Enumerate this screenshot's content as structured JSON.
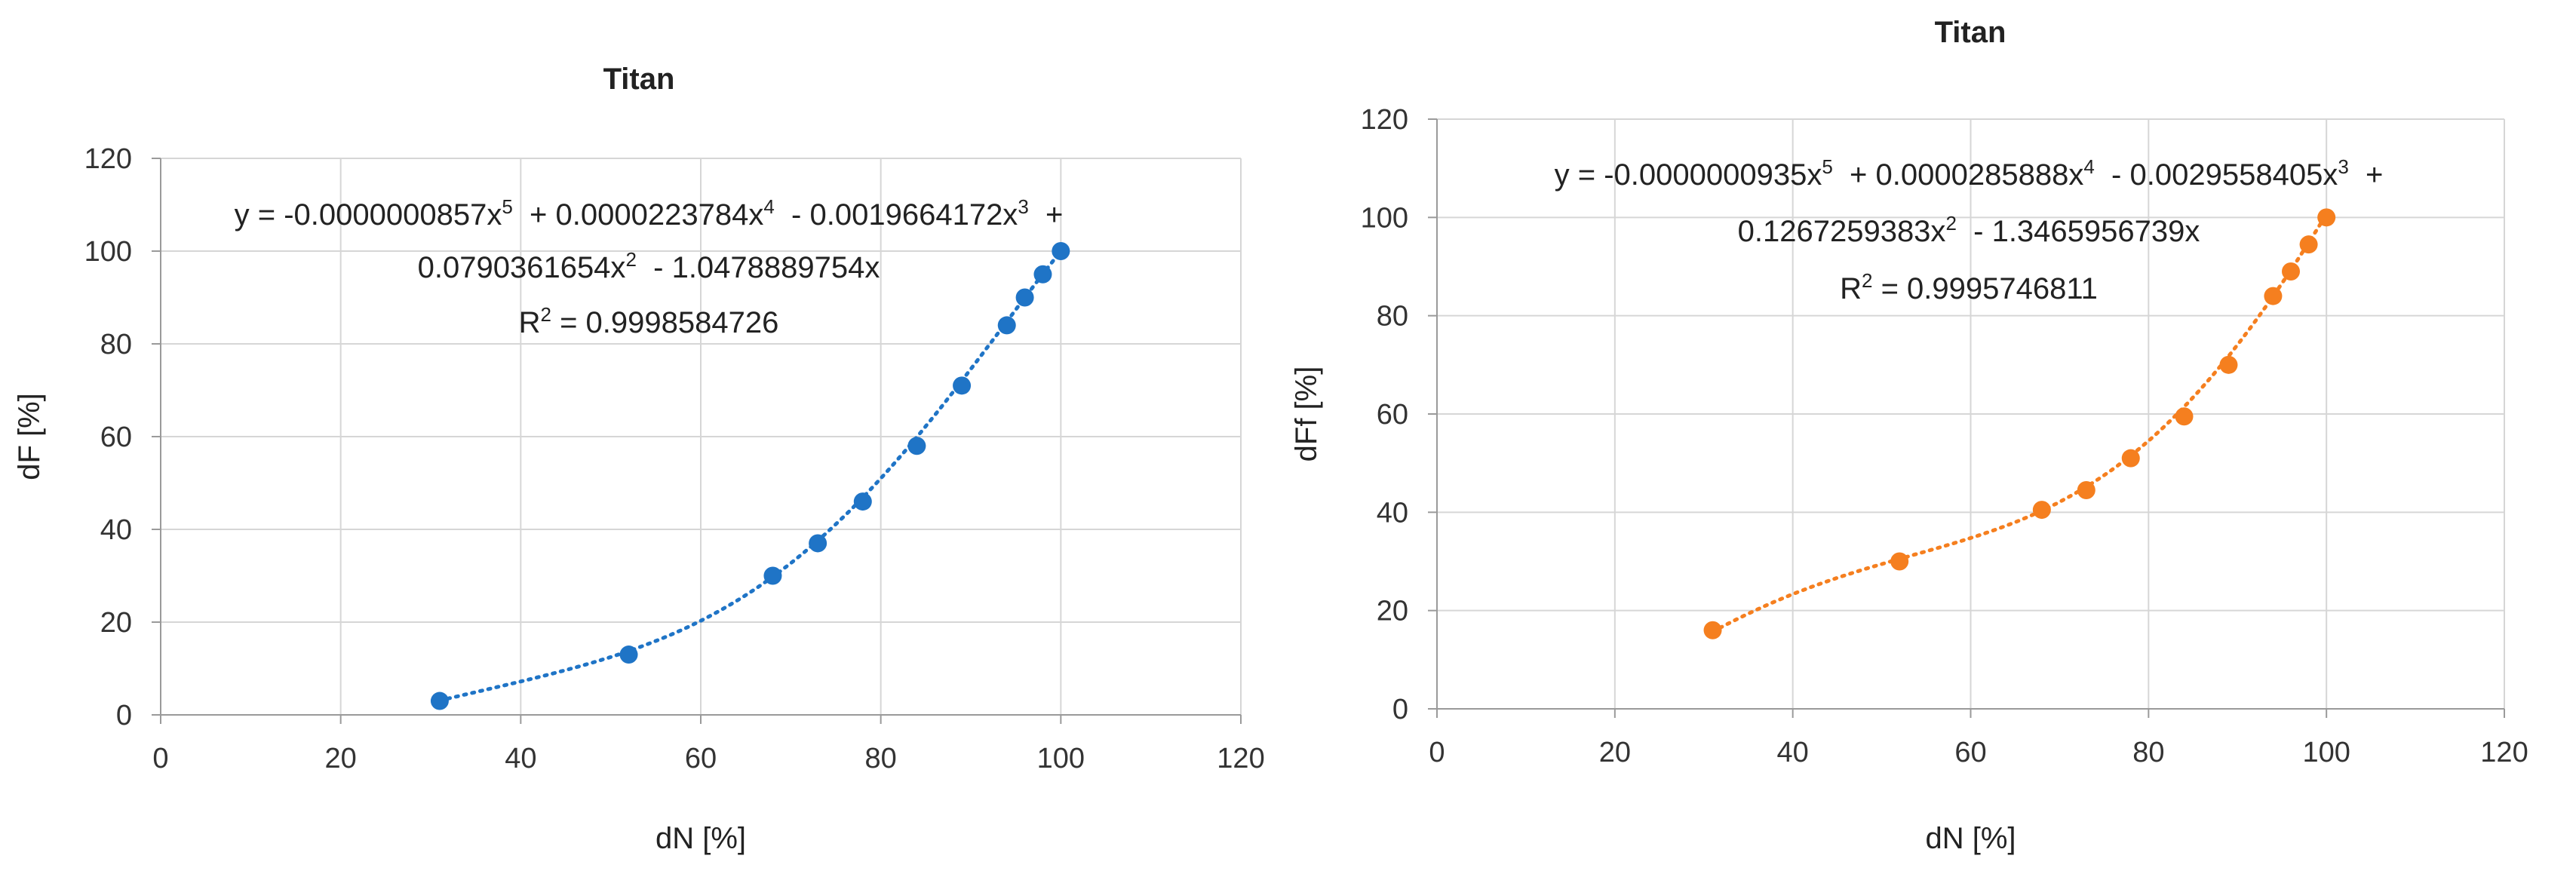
{
  "chart_data": [
    {
      "type": "scatter",
      "title": "Titan",
      "xlabel": "dN [%]",
      "ylabel": "dF [%]",
      "xlim": [
        0,
        120
      ],
      "ylim": [
        0,
        120
      ],
      "xticks": [
        0,
        20,
        40,
        60,
        80,
        100,
        120
      ],
      "yticks": [
        0,
        20,
        40,
        60,
        80,
        100,
        120
      ],
      "grid": true,
      "marker_color": "#1f74c6",
      "series": [
        {
          "x": [
            31,
            52,
            68,
            73,
            78,
            84,
            89,
            94,
            96,
            98,
            100
          ],
          "y": [
            3,
            13,
            30,
            37,
            46,
            58,
            71,
            84,
            90,
            95,
            100
          ]
        }
      ],
      "trendline": {
        "type": "polynomial",
        "order": 5,
        "coefficients": [
          0,
          -1.0478889754,
          0.0790361654,
          -0.0019664172,
          2.23784e-05,
          -8.57e-08
        ],
        "equation_lines": [
          [
            "y = -0.0000000857x",
            "5",
            "  + 0.0000223784x",
            "4",
            "  - 0.0019664172x",
            "3",
            "  +"
          ],
          [
            "0.0790361654x",
            "2",
            "  - 1.0478889754x"
          ],
          [
            "R",
            "2",
            " = 0.9998584726"
          ]
        ]
      }
    },
    {
      "type": "scatter",
      "title": "Titan",
      "xlabel": "dN [%]",
      "ylabel": "dFf [%]",
      "xlim": [
        0,
        120
      ],
      "ylim": [
        0,
        120
      ],
      "xticks": [
        0,
        20,
        40,
        60,
        80,
        100,
        120
      ],
      "yticks": [
        0,
        20,
        40,
        60,
        80,
        100,
        120
      ],
      "grid": true,
      "marker_color": "#f57f1f",
      "series": [
        {
          "x": [
            31,
            52,
            68,
            73,
            78,
            84,
            89,
            94,
            96,
            98,
            100
          ],
          "y": [
            16,
            30,
            40.5,
            44.5,
            51,
            59.5,
            70,
            84,
            89,
            94.5,
            100
          ]
        }
      ],
      "trendline": {
        "type": "polynomial",
        "order": 5,
        "coefficients": [
          0,
          -1.3465956739,
          0.1267259383,
          -0.0029558405,
          2.85888e-05,
          -9.35e-08
        ],
        "equation_lines": [
          [
            "y = -0.0000000935x",
            "5",
            "  + 0.0000285888x",
            "4",
            "  - 0.0029558405x",
            "3",
            "  +"
          ],
          [
            "0.1267259383x",
            "2",
            "  - 1.3465956739x"
          ],
          [
            "R",
            "2",
            " = 0.9995746811"
          ]
        ]
      }
    }
  ]
}
